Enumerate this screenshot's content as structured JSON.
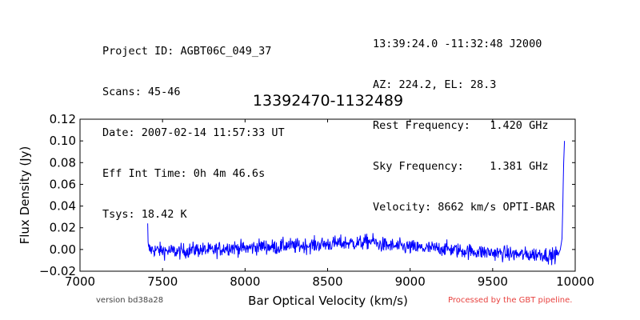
{
  "header": {
    "left": [
      "Project ID: AGBT06C_049_37",
      "Scans: 45-46",
      "Date: 2007-02-14 11:57:33 UT",
      "Eff Int Time: 0h 4m 46.6s",
      "Tsys: 18.42 K"
    ],
    "right": [
      "13:39:24.0 -11:32:48 J2000",
      "AZ: 224.2, EL: 28.3",
      "Rest Frequency:   1.420 GHz",
      "Sky Frequency:    1.381 GHz",
      "Velocity: 8662 km/s OPTI-BAR"
    ]
  },
  "footer": {
    "version": "version bd38a28",
    "pipeline": "Processed by the GBT pipeline.",
    "pipeline_color": "#e8423f"
  },
  "chart_data": {
    "type": "line",
    "title": "13392470-1132489",
    "xlabel": "Bar Optical Velocity (km/s)",
    "ylabel": "Flux Density (Jy)",
    "xlim": [
      7000,
      10000
    ],
    "ylim": [
      -0.02,
      0.12
    ],
    "xticks": [
      "7000",
      "7500",
      "8000",
      "8500",
      "9000",
      "9500",
      "10000"
    ],
    "yticks": [
      "−0.02",
      "0.00",
      "0.02",
      "0.04",
      "0.06",
      "0.08",
      "0.10",
      "0.12"
    ],
    "line_color": "#0000ff",
    "grid": false,
    "series": [
      {
        "x": [
          7410,
          7412,
          7415,
          7420,
          7500,
          7600,
          7700,
          7800,
          7900,
          8000,
          8100,
          8200,
          8250,
          8300,
          8400,
          8500,
          8600,
          8700,
          8770,
          8800,
          8900,
          9000,
          9100,
          9200,
          9300,
          9400,
          9500,
          9600,
          9700,
          9800,
          9850,
          9900,
          9910,
          9920,
          9925,
          9930,
          9935
        ],
        "y": [
          0.024,
          0.004,
          0.001,
          0.0,
          -0.001,
          -0.002,
          0.0,
          -0.001,
          0.002,
          0.001,
          0.003,
          0.002,
          0.004,
          0.003,
          0.004,
          0.005,
          0.006,
          0.006,
          0.008,
          0.005,
          0.003,
          0.002,
          0.001,
          0.001,
          -0.001,
          -0.002,
          -0.003,
          -0.004,
          -0.005,
          -0.004,
          -0.006,
          -0.004,
          0.0,
          0.01,
          0.04,
          0.08,
          0.1
        ],
        "noise_rms": 0.005
      }
    ]
  }
}
